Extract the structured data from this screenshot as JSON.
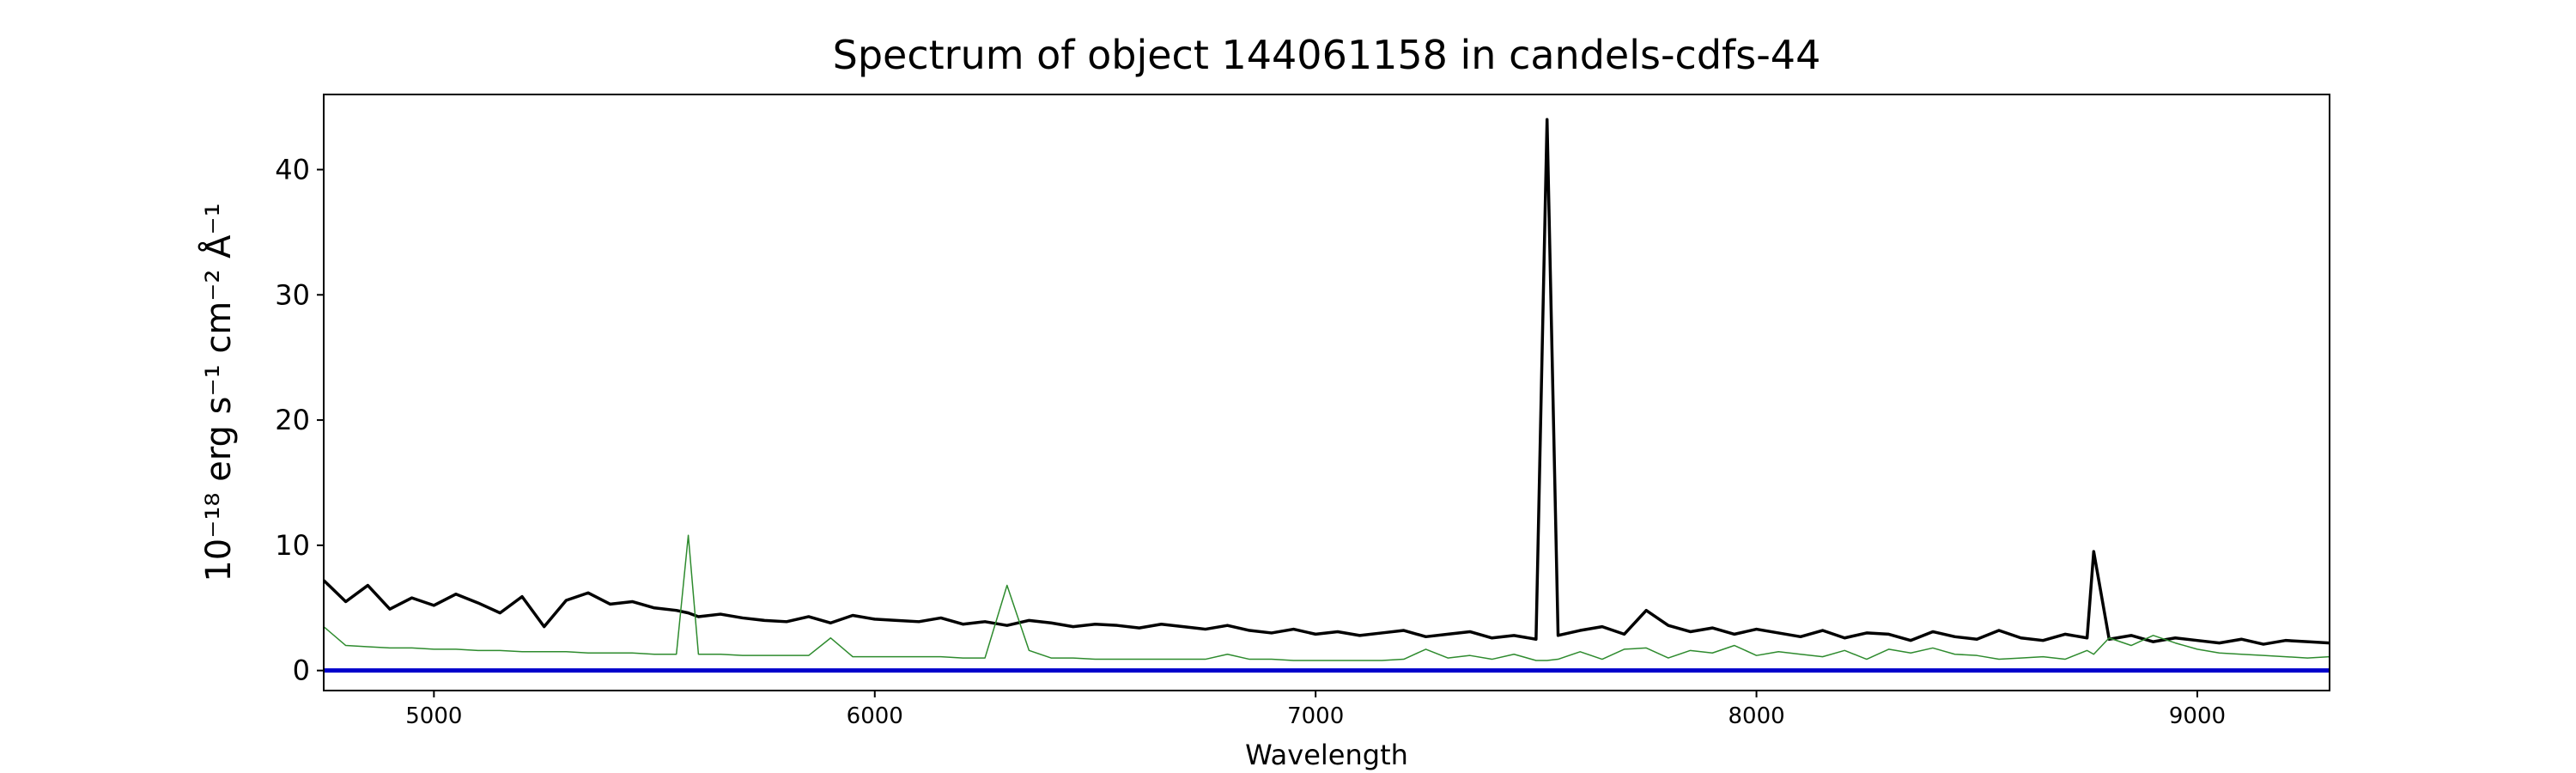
{
  "chart_data": {
    "type": "line",
    "title": "Spectrum of object 144061158 in candels-cdfs-44",
    "x_label": "Wavelength",
    "y_label": "10⁻¹⁸ erg s⁻¹ cm⁻² Å⁻¹",
    "x": [
      4750,
      4800,
      4850,
      4900,
      4950,
      5000,
      5050,
      5100,
      5150,
      5200,
      5250,
      5300,
      5350,
      5400,
      5450,
      5500,
      5550,
      5577,
      5600,
      5650,
      5700,
      5750,
      5800,
      5850,
      5900,
      5950,
      6000,
      6050,
      6100,
      6150,
      6200,
      6250,
      6300,
      6350,
      6400,
      6450,
      6500,
      6550,
      6600,
      6650,
      6700,
      6750,
      6800,
      6850,
      6900,
      6950,
      7000,
      7050,
      7100,
      7150,
      7200,
      7250,
      7300,
      7350,
      7400,
      7450,
      7500,
      7525,
      7550,
      7600,
      7650,
      7700,
      7750,
      7800,
      7850,
      7900,
      7950,
      8000,
      8050,
      8100,
      8150,
      8200,
      8250,
      8300,
      8350,
      8400,
      8450,
      8500,
      8550,
      8600,
      8650,
      8700,
      8750,
      8765,
      8800,
      8850,
      8900,
      8950,
      9000,
      9050,
      9100,
      9150,
      9200,
      9250,
      9300
    ],
    "series": [
      {
        "color": "#000000",
        "values": [
          7.2,
          5.5,
          6.8,
          4.9,
          5.8,
          5.2,
          6.1,
          5.4,
          4.6,
          5.9,
          3.5,
          5.6,
          6.2,
          5.3,
          5.5,
          5.0,
          4.8,
          4.6,
          4.3,
          4.5,
          4.2,
          4.0,
          3.9,
          4.3,
          3.8,
          4.4,
          4.1,
          4.0,
          3.9,
          4.2,
          3.7,
          3.9,
          3.6,
          4.0,
          3.8,
          3.5,
          3.7,
          3.6,
          3.4,
          3.7,
          3.5,
          3.3,
          3.6,
          3.2,
          3.0,
          3.3,
          2.9,
          3.1,
          2.8,
          3.0,
          3.2,
          2.7,
          2.9,
          3.1,
          2.6,
          2.8,
          2.5,
          44,
          2.8,
          3.2,
          3.5,
          2.9,
          4.8,
          3.6,
          3.1,
          3.4,
          2.9,
          3.3,
          3.0,
          2.7,
          3.2,
          2.6,
          3.0,
          2.9,
          2.4,
          3.1,
          2.7,
          2.5,
          3.2,
          2.6,
          2.4,
          2.9,
          2.6,
          9.5,
          2.5,
          2.8,
          2.3,
          2.6,
          2.4,
          2.2,
          2.5,
          2.1,
          2.4,
          2.3,
          2.2
        ]
      },
      {
        "color": "#2e8b2e",
        "values": [
          3.5,
          2.0,
          1.9,
          1.8,
          1.8,
          1.7,
          1.7,
          1.6,
          1.6,
          1.5,
          1.5,
          1.5,
          1.4,
          1.4,
          1.4,
          1.3,
          1.3,
          10.8,
          1.3,
          1.3,
          1.2,
          1.2,
          1.2,
          1.2,
          2.6,
          1.1,
          1.1,
          1.1,
          1.1,
          1.1,
          1.0,
          1.0,
          6.8,
          1.6,
          1.0,
          1.0,
          0.9,
          0.9,
          0.9,
          0.9,
          0.9,
          0.9,
          1.3,
          0.9,
          0.9,
          0.8,
          0.8,
          0.8,
          0.8,
          0.8,
          0.9,
          1.7,
          1.0,
          1.2,
          0.9,
          1.3,
          0.8,
          0.8,
          0.9,
          1.5,
          0.9,
          1.7,
          1.8,
          1.0,
          1.6,
          1.4,
          2.0,
          1.2,
          1.5,
          1.3,
          1.1,
          1.6,
          0.9,
          1.7,
          1.4,
          1.8,
          1.3,
          1.2,
          0.9,
          1.0,
          1.1,
          0.9,
          1.6,
          1.3,
          2.6,
          2.0,
          2.8,
          2.2,
          1.7,
          1.4,
          1.3,
          1.2,
          1.1,
          1.0,
          1.1
        ]
      },
      {
        "color": "#0000cc",
        "values": [
          0,
          0,
          0,
          0,
          0,
          0,
          0,
          0,
          0,
          0,
          0,
          0,
          0,
          0,
          0,
          0,
          0,
          0,
          0,
          0,
          0,
          0,
          0,
          0,
          0,
          0,
          0,
          0,
          0,
          0,
          0,
          0,
          0,
          0,
          0,
          0,
          0,
          0,
          0,
          0,
          0,
          0,
          0,
          0,
          0,
          0,
          0,
          0,
          0,
          0,
          0,
          0,
          0,
          0,
          0,
          0,
          0,
          0,
          0,
          0,
          0,
          0,
          0,
          0,
          0,
          0,
          0,
          0,
          0,
          0,
          0,
          0,
          0,
          0,
          0,
          0,
          0,
          0,
          0,
          0,
          0,
          0,
          0,
          0,
          0,
          0,
          0,
          0,
          0,
          0,
          0,
          0,
          0,
          0,
          0
        ]
      }
    ],
    "xlim": [
      4750,
      9300
    ],
    "ylim": [
      -1.6,
      46
    ],
    "xticks": [
      5000,
      6000,
      7000,
      8000,
      9000
    ],
    "yticks": [
      0,
      10,
      20,
      30,
      40
    ]
  }
}
